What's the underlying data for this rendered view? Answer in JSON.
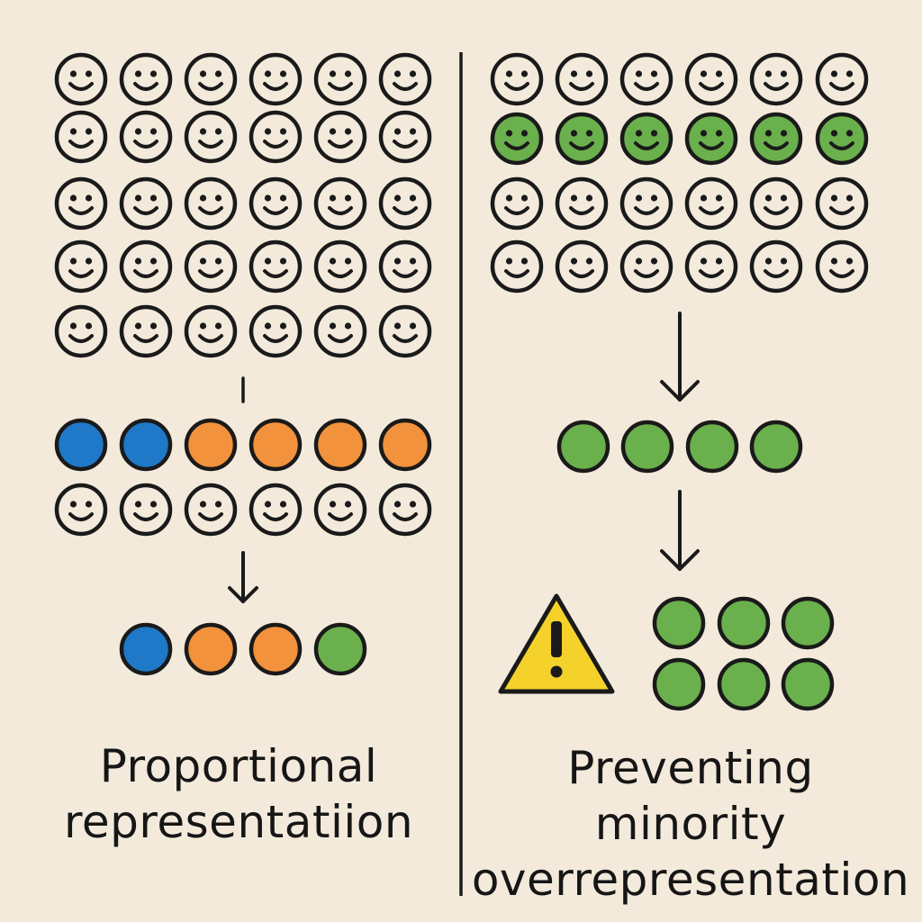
{
  "left_panel": {
    "caption_line1": "Proportional",
    "caption_line2": "representatiion",
    "population": {
      "rows": 5,
      "cols": 6,
      "face": "smiley"
    },
    "mapping_row": {
      "colored": [
        "blue",
        "blue",
        "orange",
        "orange",
        "orange",
        "orange"
      ],
      "faces_below": 6
    },
    "result": [
      "blue",
      "orange",
      "orange",
      "green"
    ]
  },
  "right_panel": {
    "caption_line1": "Preventing",
    "caption_line2": "minority",
    "caption_line3": "overrepresentation",
    "population": {
      "rows": 4,
      "cols": 6,
      "highlighted_row": 2,
      "highlight_color": "green"
    },
    "intermediate": [
      "green",
      "green",
      "green",
      "green"
    ],
    "result": [
      "green",
      "green",
      "green",
      "green",
      "green",
      "green"
    ],
    "warning_icon": "warning-triangle-icon"
  },
  "colors": {
    "background": "#f3eadb",
    "outline": "#1a1a1a",
    "face_fill": "#f3eadb",
    "blue": "#1f78c8",
    "orange": "#f2923c",
    "green": "#6ab04c",
    "warning": "#f4d22b"
  }
}
